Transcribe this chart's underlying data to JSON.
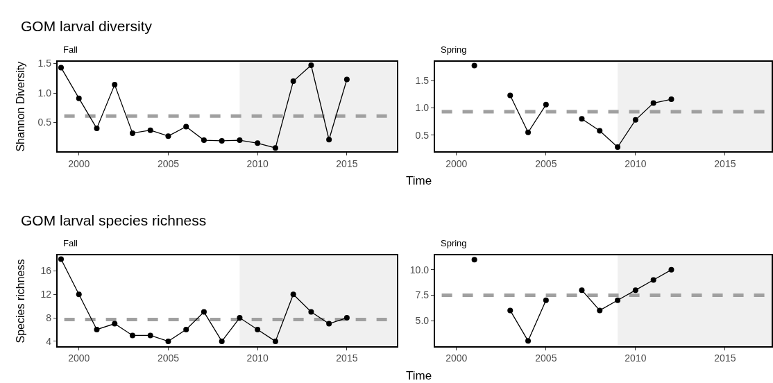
{
  "chart_data": [
    {
      "type": "line",
      "title": "GOM larval diversity",
      "subtitle": "Fall",
      "ylabel": "Shannon Diversity",
      "marker": "circle",
      "grid": false,
      "x": [
        1999,
        2000,
        2001,
        2002,
        2003,
        2004,
        2005,
        2006,
        2007,
        2008,
        2009,
        2010,
        2011,
        2012,
        2013,
        2014,
        2015
      ],
      "series": [
        {
          "color": "#000000",
          "values": [
            1.43,
            0.91,
            0.4,
            1.14,
            0.32,
            0.37,
            0.27,
            0.43,
            0.2,
            0.19,
            0.2,
            0.15,
            0.07,
            1.2,
            1.47,
            0.21,
            1.23
          ]
        }
      ],
      "xlim": [
        1998.8,
        2017.8
      ],
      "xticks": [
        2000,
        2005,
        2010,
        2015
      ],
      "ylim": [
        0.01,
        1.53
      ],
      "yticks": [
        0.5,
        {
          "value": 1,
          "label": "1.0"
        },
        1.5
      ],
      "ref_lines": [
        {
          "axis": "y",
          "value": 0.61,
          "color": "#a0a0a0",
          "line_style": "dashed"
        }
      ],
      "bands": [
        {
          "axis": "x",
          "from": 2009,
          "to": 2017.8,
          "color": "#f0f0f0"
        }
      ]
    },
    {
      "type": "line",
      "subtitle": "Spring",
      "xlabel": "Time",
      "marker": "circle",
      "grid": false,
      "x": [
        2001,
        2002,
        2003,
        2004,
        2005,
        2006,
        2007,
        2008,
        2009,
        2010,
        2011,
        2012
      ],
      "series": [
        {
          "color": "#000000",
          "values": [
            1.78,
            null,
            1.23,
            0.55,
            1.06,
            null,
            0.8,
            0.58,
            0.28,
            0.78,
            1.09,
            1.16
          ]
        }
      ],
      "xlim": [
        1998.8,
        2017.6
      ],
      "xticks": [
        2000,
        2005,
        2010,
        2015
      ],
      "ylim": [
        0.2,
        1.85
      ],
      "yticks": [
        0.5,
        {
          "value": 1,
          "label": "1.0"
        },
        1.5
      ],
      "ref_lines": [
        {
          "axis": "y",
          "value": 0.93,
          "color": "#a0a0a0",
          "line_style": "dashed"
        }
      ],
      "bands": [
        {
          "axis": "x",
          "from": 2009,
          "to": 2017.6,
          "color": "#f0f0f0"
        }
      ]
    },
    {
      "type": "line",
      "title": "GOM larval species richness",
      "subtitle": "Fall",
      "ylabel": "Species richness",
      "marker": "circle",
      "grid": false,
      "x": [
        1999,
        2000,
        2001,
        2002,
        2003,
        2004,
        2005,
        2006,
        2007,
        2008,
        2009,
        2010,
        2011,
        2012,
        2013,
        2014,
        2015
      ],
      "series": [
        {
          "color": "#000000",
          "values": [
            18,
            12,
            6,
            7,
            5,
            5,
            4,
            6,
            9,
            4,
            8,
            6,
            4,
            12,
            9,
            7,
            8
          ]
        }
      ],
      "xlim": [
        1998.8,
        2017.8
      ],
      "xticks": [
        2000,
        2005,
        2010,
        2015
      ],
      "ylim": [
        3.2,
        18.6
      ],
      "yticks": [
        4,
        8,
        12,
        16
      ],
      "ref_lines": [
        {
          "axis": "y",
          "value": 7.7,
          "color": "#a0a0a0",
          "line_style": "dashed"
        }
      ],
      "bands": [
        {
          "axis": "x",
          "from": 2009,
          "to": 2017.8,
          "color": "#f0f0f0"
        }
      ]
    },
    {
      "type": "line",
      "subtitle": "Spring",
      "xlabel": "Time",
      "marker": "circle",
      "grid": false,
      "x": [
        2001,
        2002,
        2003,
        2004,
        2005,
        2006,
        2007,
        2008,
        2009,
        2010,
        2011,
        2012
      ],
      "series": [
        {
          "color": "#000000",
          "values": [
            11,
            null,
            6,
            3,
            7,
            null,
            8,
            6,
            7,
            8,
            9,
            10
          ]
        }
      ],
      "xlim": [
        1998.8,
        2017.6
      ],
      "xticks": [
        2000,
        2005,
        2010,
        2015
      ],
      "ylim": [
        2.5,
        11.4
      ],
      "yticks": [
        {
          "value": 5,
          "label": "5.0"
        },
        {
          "value": 7.5,
          "label": "7.5"
        },
        {
          "value": 10,
          "label": "10.0"
        }
      ],
      "ref_lines": [
        {
          "axis": "y",
          "value": 7.5,
          "color": "#a0a0a0",
          "line_style": "dashed"
        }
      ],
      "bands": [
        {
          "axis": "x",
          "from": 2009,
          "to": 2017.6,
          "color": "#f0f0f0"
        }
      ]
    }
  ]
}
